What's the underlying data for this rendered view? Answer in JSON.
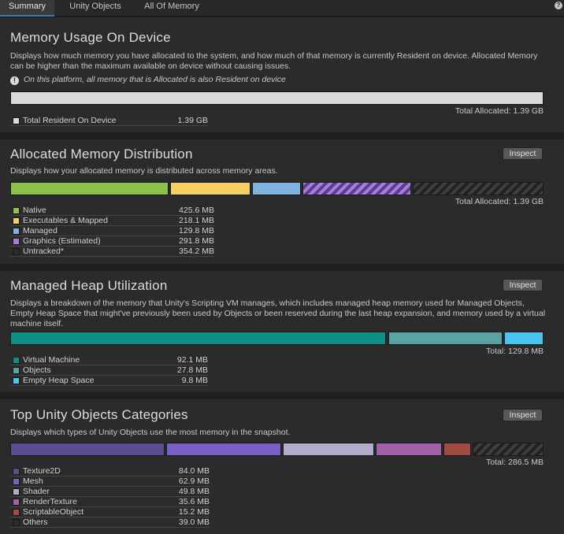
{
  "tabs": [
    {
      "label": "Summary",
      "active": true
    },
    {
      "label": "Unity Objects",
      "active": false
    },
    {
      "label": "All Of Memory",
      "active": false
    }
  ],
  "help_glyph": "?",
  "sections": {
    "usage": {
      "title": "Memory Usage On Device",
      "description": "Displays how much memory you have allocated to the system, and how much of that memory is currently Resident on device. Allocated Memory can be higher than the maximum available on device without causing issues.",
      "note_icon": "!",
      "note": "On this platform, all memory that is Allocated is also Resident on device",
      "total": "Total Allocated: 1.39 GB",
      "legend": [
        {
          "name": "Total Resident On Device",
          "value": "1.39 GB",
          "color": "#dadada"
        }
      ]
    },
    "allocated": {
      "title": "Allocated Memory Distribution",
      "inspect": "Inspect",
      "description": "Displays how your allocated memory is distributed across memory areas.",
      "total": "Total Allocated: 1.39 GB",
      "legend": [
        {
          "name": "Native",
          "value": "425.6 MB",
          "color": "#8bc34a"
        },
        {
          "name": "Executables & Mapped",
          "value": "218.1 MB",
          "color": "#f5d060"
        },
        {
          "name": "Managed",
          "value": "129.8 MB",
          "color": "#7fb3e0"
        },
        {
          "name": "Graphics (Estimated)",
          "value": "291.8 MB",
          "color": "#a47fe0"
        },
        {
          "name": "Untracked*",
          "value": "354.2 MB",
          "color": "#2b2b2b"
        }
      ]
    },
    "managed": {
      "title": "Managed Heap Utilization",
      "inspect": "Inspect",
      "description": "Displays a breakdown of the memory that Unity's Scripting VM manages, which includes managed heap memory used for Managed Objects, Empty Heap Space that might've previously been used by Objects or been reserved during the last heap expansion, and memory used by a virtual machine itself.",
      "total": "Total: 129.8 MB",
      "legend": [
        {
          "name": "Virtual Machine",
          "value": "92.1 MB",
          "color": "#0f8f86"
        },
        {
          "name": "Objects",
          "value": "27.8 MB",
          "color": "#5aa3a3"
        },
        {
          "name": "Empty Heap Space",
          "value": "9.8 MB",
          "color": "#48c5f0"
        }
      ]
    },
    "categories": {
      "title": "Top Unity Objects Categories",
      "inspect": "Inspect",
      "description": "Displays which types of Unity Objects use the most memory in the snapshot.",
      "total": "Total: 286.5 MB",
      "legend": [
        {
          "name": "Texture2D",
          "value": "84.0 MB",
          "color": "#5e4a8f"
        },
        {
          "name": "Mesh",
          "value": "62.9 MB",
          "color": "#7b5fc8"
        },
        {
          "name": "Shader",
          "value": "49.8 MB",
          "color": "#b2abc9"
        },
        {
          "name": "RenderTexture",
          "value": "35.6 MB",
          "color": "#a260a8"
        },
        {
          "name": "ScriptableObject",
          "value": "15.2 MB",
          "color": "#a04a40"
        },
        {
          "name": "Others",
          "value": "39.0 MB",
          "color": "#2b2b2b"
        }
      ]
    }
  }
}
